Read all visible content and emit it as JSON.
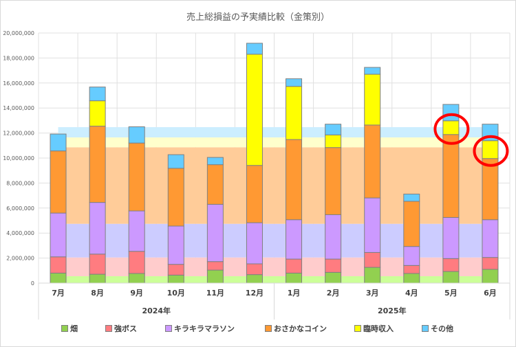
{
  "chart_data": {
    "type": "bar",
    "stacked": true,
    "title": "売上総損益の予実績比較（金策別）",
    "categories": [
      "7月",
      "8月",
      "9月",
      "10月",
      "11月",
      "12月",
      "1月",
      "2月",
      "3月",
      "4月",
      "5月",
      "6月"
    ],
    "category_groups": [
      {
        "label": "2024年",
        "categories": [
          "7月",
          "8月",
          "9月",
          "10月",
          "11月",
          "12月"
        ]
      },
      {
        "label": "2025年",
        "categories": [
          "1月",
          "2月",
          "3月",
          "4月",
          "5月",
          "6月"
        ]
      }
    ],
    "ylim": [
      0,
      20000000
    ],
    "yticks": [
      0,
      2000000,
      4000000,
      6000000,
      8000000,
      10000000,
      12000000,
      14000000,
      16000000,
      18000000,
      20000000
    ],
    "ytick_labels": [
      "0",
      "2,000,000",
      "4,000,000",
      "6,000,000",
      "8,000,000",
      "10,000,000",
      "12,000,000",
      "14,000,000",
      "16,000,000",
      "18,000,000",
      "20,000,000"
    ],
    "grid": true,
    "legend_position": "bottom",
    "series": [
      {
        "name": "畑",
        "color": "#92d050",
        "budget_color": "#ccff99",
        "budget": 550000,
        "values": [
          800000,
          710000,
          770000,
          640000,
          1040000,
          680000,
          800000,
          860000,
          1260000,
          770000,
          930000,
          1100000
        ]
      },
      {
        "name": "強ボス",
        "color": "#ff7c80",
        "budget_color": "#ffcccc",
        "budget": 1500000,
        "values": [
          1300000,
          1610000,
          1770000,
          860000,
          680000,
          860000,
          1120000,
          1060000,
          1190000,
          640000,
          1030000,
          950000
        ]
      },
      {
        "name": "キラキラマラソン",
        "color": "#cc99ff",
        "budget_color": "#ccccff",
        "budget": 2690000,
        "values": [
          3500000,
          4130000,
          3230000,
          3060000,
          4580000,
          3290000,
          3150000,
          3550000,
          4360000,
          1520000,
          3290000,
          3020000
        ]
      },
      {
        "name": "おさかなコイン",
        "color": "#ff9933",
        "budget_color": "#ffcc99",
        "budget": 6120000,
        "values": [
          4970000,
          6100000,
          5430000,
          4620000,
          3170000,
          4580000,
          6410000,
          5370000,
          5830000,
          3610000,
          6630000,
          4890000
        ]
      },
      {
        "name": "臨時収入",
        "color": "#ffff00",
        "budget_color": "#ffffcc",
        "budget": 790000,
        "values": [
          0,
          2030000,
          0,
          0,
          0,
          8890000,
          4250000,
          1010000,
          4060000,
          0,
          1100000,
          1430000
        ]
      },
      {
        "name": "その他",
        "color": "#66ccff",
        "budget_color": "#cceeff",
        "budget": 820000,
        "values": [
          1350000,
          1100000,
          1300000,
          1090000,
          580000,
          880000,
          610000,
          860000,
          550000,
          580000,
          1310000,
          1320000
        ]
      }
    ],
    "highlights": [
      {
        "category": "5月",
        "series": "臨時収入",
        "color": "#ff0000"
      },
      {
        "category": "6月",
        "series": "臨時収入",
        "color": "#ff0000"
      }
    ]
  }
}
